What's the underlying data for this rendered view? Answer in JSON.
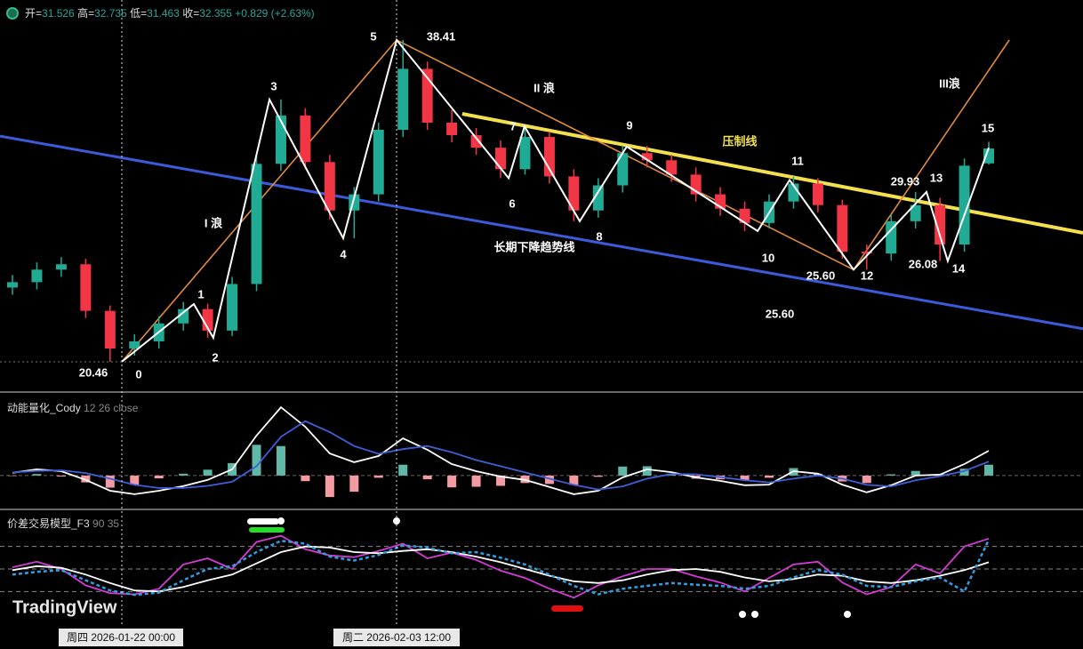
{
  "header": {
    "items": [
      {
        "name": "开=",
        "value": 31.526
      },
      {
        "name": "高=",
        "value": 32.735
      },
      {
        "name": "低=",
        "value": 31.463
      },
      {
        "name": "收=",
        "value": 32.355
      }
    ],
    "change": {
      "value": 0.829,
      "label": "+0.829"
    },
    "change_pct": {
      "value": 2.63,
      "label": "(+2.63%)"
    }
  },
  "time_labels": [
    "周四 2026-01-22   00:00",
    "周二 2026-02-03   12:00"
  ],
  "watermark": "TradingView",
  "chart_data": [
    {
      "type": "candlestick",
      "colors": {
        "up": "#22ab94",
        "down": "#f23645"
      },
      "xlim": [
        -0.51,
        43.86
      ],
      "ylim": [
        18.82,
        40.64
      ],
      "open": [
        24.6,
        24.9,
        25.6,
        25.9,
        23.3,
        21.2,
        21.6,
        22.6,
        23.4,
        22.2,
        24.8,
        31.5,
        34.2,
        31.6,
        28.9,
        29.8,
        33.4,
        36.8,
        33.8,
        33.1,
        32.4,
        31.2,
        33.0,
        30.8,
        28.9,
        30.3,
        32.1,
        31.7,
        30.9,
        29.8,
        29.0,
        28.2,
        29.4,
        30.4,
        29.2,
        26.6,
        26.5,
        28.3,
        29.2,
        27.0,
        31.526
      ],
      "high": [
        25.3,
        26.0,
        26.3,
        26.2,
        23.6,
        22.0,
        23.0,
        23.8,
        23.7,
        25.2,
        32.0,
        35.1,
        34.6,
        32.0,
        30.2,
        33.8,
        38.41,
        37.2,
        34.5,
        33.5,
        32.8,
        33.6,
        33.3,
        31.2,
        30.7,
        32.5,
        32.5,
        32.0,
        31.3,
        30.2,
        29.4,
        29.8,
        30.8,
        30.7,
        29.5,
        27.0,
        28.7,
        29.93,
        29.6,
        31.8,
        32.735
      ],
      "low": [
        24.2,
        24.5,
        25.2,
        22.9,
        20.46,
        20.8,
        21.2,
        22.2,
        21.8,
        21.9,
        24.4,
        31.1,
        31.2,
        28.4,
        27.35,
        29.4,
        33.0,
        33.4,
        32.7,
        32.0,
        30.7,
        30.9,
        30.4,
        28.3,
        28.5,
        29.9,
        31.3,
        30.5,
        29.4,
        28.6,
        27.75,
        27.9,
        29.0,
        28.8,
        26.2,
        25.6,
        26.1,
        27.9,
        26.08,
        26.6,
        31.463
      ],
      "close": [
        24.9,
        25.6,
        25.9,
        23.3,
        21.2,
        21.6,
        22.6,
        23.4,
        22.2,
        24.8,
        31.5,
        34.2,
        31.6,
        28.9,
        29.8,
        33.4,
        36.8,
        33.8,
        33.1,
        32.4,
        31.2,
        33.0,
        30.8,
        28.9,
        30.3,
        32.1,
        31.7,
        30.9,
        29.8,
        29.0,
        28.2,
        29.4,
        30.4,
        29.2,
        26.6,
        26.5,
        28.3,
        29.2,
        27.0,
        31.4,
        32.355
      ],
      "waves": {
        "color": "#ffffff",
        "labels": [
          "0",
          "1",
          "2",
          "3",
          "4",
          "5",
          "6",
          "7",
          "8",
          "9",
          "10",
          "11",
          "12",
          "13",
          "14",
          "15"
        ],
        "x": [
          4.48,
          7.43,
          8.23,
          10.53,
          13.55,
          15.74,
          20.33,
          20.98,
          23.24,
          25.17,
          30.53,
          31.84,
          34.46,
          37.45,
          38.32,
          40.0
        ],
        "values": [
          20.46,
          23.68,
          21.8,
          35.09,
          27.35,
          38.41,
          30.7,
          33.6,
          28.3,
          32.46,
          27.75,
          30.6,
          25.6,
          29.93,
          26.08,
          32.4
        ]
      },
      "price_labels": [
        {
          "value": 20.46,
          "label": "20.46"
        },
        {
          "value": 38.41,
          "label": "38.41"
        },
        {
          "value": 25.6,
          "label": "25.60"
        },
        {
          "value": 25.6,
          "label": "25.60"
        },
        {
          "value": 29.93,
          "label": "29.93"
        },
        {
          "value": 26.08,
          "label": "26.08"
        }
      ],
      "annotations": [
        "I 浪",
        "II 浪",
        "III浪"
      ],
      "trendlines": [
        {
          "name": "长期下降趋势线",
          "color": "#3b5bdb",
          "x": [
            -0.51,
            43.86
          ],
          "values": [
            33.05,
            22.3
          ]
        },
        {
          "name": "压制线",
          "color": "#f4e04d",
          "x": [
            18.43,
            43.86
          ],
          "values": [
            34.29,
            27.65
          ]
        },
        {
          "color": "#e08a3c",
          "x": [
            4.48,
            15.74,
            34.46,
            40.84
          ],
          "values": [
            20.46,
            38.41,
            25.6,
            38.41
          ]
        }
      ]
    },
    {
      "type": "macd",
      "title": "动能量化_Cody",
      "params": "12 26 close",
      "ylim": [
        -1.09,
        2.66
      ],
      "histogram": {
        "colors": {
          "up": "#5fb8a8",
          "down": "#f49aa2"
        },
        "values": [
          -0.01,
          0.05,
          -0.03,
          -0.22,
          -0.39,
          -0.3,
          -0.09,
          0.06,
          0.19,
          0.4,
          0.99,
          0.95,
          -0.18,
          -0.69,
          -0.52,
          -0.07,
          0.35,
          -0.12,
          -0.38,
          -0.36,
          -0.33,
          -0.24,
          -0.27,
          -0.3,
          -0.04,
          0.29,
          0.3,
          0.06,
          -0.1,
          -0.12,
          -0.16,
          -0.07,
          0.24,
          0.06,
          -0.19,
          -0.24,
          0.04,
          0.15,
          0.05,
          0.22,
          0.35
        ]
      },
      "series": [
        {
          "color": "#ffffff",
          "values": [
            0.09,
            0.2,
            0.14,
            -0.14,
            -0.49,
            -0.6,
            -0.49,
            -0.34,
            -0.14,
            0.2,
            1.29,
            2.2,
            1.57,
            0.71,
            0.43,
            0.63,
            1.2,
            0.83,
            0.37,
            0.14,
            -0.03,
            -0.14,
            -0.37,
            -0.6,
            -0.49,
            -0.06,
            0.2,
            0.11,
            -0.06,
            -0.17,
            -0.31,
            -0.29,
            0.14,
            0.06,
            -0.29,
            -0.54,
            -0.31,
            0,
            0.03,
            0.37,
            0.8
          ]
        },
        {
          "color": "#3f5fd8",
          "values": [
            0.1,
            0.15,
            0.17,
            0.08,
            -0.1,
            -0.3,
            -0.4,
            -0.4,
            -0.33,
            -0.2,
            0.3,
            1.25,
            1.75,
            1.4,
            0.95,
            0.7,
            0.85,
            0.95,
            0.75,
            0.5,
            0.3,
            0.1,
            -0.1,
            -0.3,
            -0.45,
            -0.35,
            -0.1,
            0.05,
            0.04,
            -0.05,
            -0.15,
            -0.22,
            -0.1,
            0.0,
            -0.1,
            -0.3,
            -0.35,
            -0.15,
            -0.02,
            0.15,
            0.45
          ]
        }
      ]
    },
    {
      "type": "line",
      "title": "价差交易模型_F3",
      "params": "90 35",
      "ylim": [
        -10,
        110
      ],
      "levels": [
        90,
        50,
        10
      ],
      "series": [
        {
          "color": "#d63ad6",
          "values": [
            53,
            63,
            50,
            21,
            7,
            5,
            15,
            58,
            69,
            50,
            98,
            109,
            85,
            74,
            71,
            82,
            95,
            69,
            79,
            66,
            47,
            34,
            15,
            -1,
            21,
            37,
            50,
            50,
            37,
            26,
            10,
            34,
            58,
            63,
            26,
            5,
            18,
            58,
            42,
            90,
            104
          ]
        },
        {
          "color": "#ffffff",
          "values": [
            48,
            55,
            52,
            40,
            25,
            12,
            10,
            18,
            30,
            40,
            60,
            80,
            90,
            88,
            80,
            78,
            82,
            85,
            80,
            72,
            62,
            50,
            38,
            28,
            25,
            30,
            40,
            48,
            50,
            45,
            35,
            28,
            32,
            40,
            38,
            28,
            25,
            30,
            38,
            48,
            62
          ]
        },
        {
          "color": "#2f9fe0",
          "dash": true,
          "values": [
            40,
            45,
            48,
            30,
            12,
            4,
            8,
            30,
            50,
            55,
            80,
            100,
            95,
            72,
            65,
            75,
            92,
            88,
            78,
            80,
            70,
            58,
            40,
            20,
            5,
            15,
            20,
            25,
            22,
            20,
            15,
            20,
            35,
            48,
            40,
            20,
            18,
            28,
            35,
            10,
            102
          ]
        }
      ]
    }
  ]
}
